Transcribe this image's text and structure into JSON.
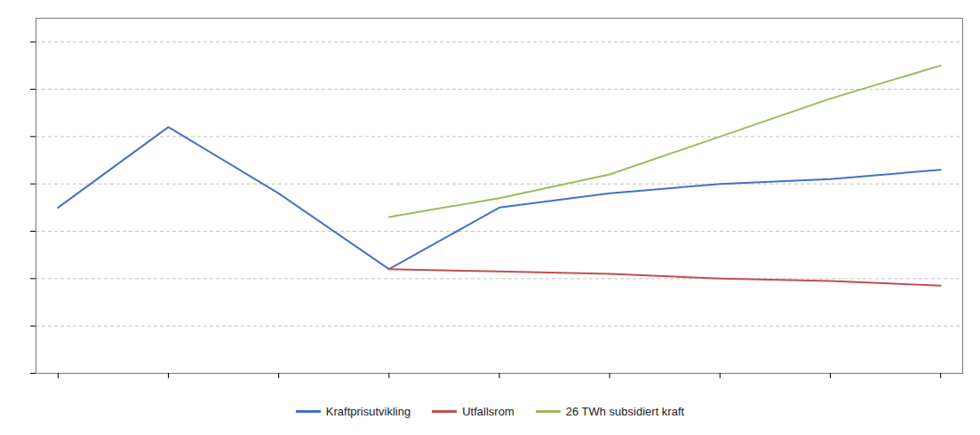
{
  "chart_data": {
    "type": "line",
    "series": [
      {
        "name": "Kraftprisutvikling",
        "color": "#4472C4",
        "x": [
          0,
          1,
          2,
          3,
          4,
          5,
          6,
          7,
          8
        ],
        "values": [
          3.5,
          5.2,
          3.8,
          2.2,
          3.5,
          3.8,
          4.0,
          4.1,
          4.3
        ]
      },
      {
        "name": "Utfallsrom",
        "color": "#C0504D",
        "x": [
          3,
          4,
          5,
          6,
          7,
          8
        ],
        "values": [
          2.2,
          2.15,
          2.1,
          2.0,
          1.95,
          1.85
        ]
      },
      {
        "name": "26 TWh subsidiert kraft",
        "color": "#9BBB59",
        "x": [
          3,
          4,
          5,
          6,
          7,
          8
        ],
        "values": [
          3.3,
          3.7,
          4.2,
          5.0,
          5.8,
          6.5
        ]
      }
    ],
    "xlim": [
      -0.2,
      8.2
    ],
    "ylim": [
      0,
      7.5
    ],
    "xticks": [
      0,
      1,
      2,
      3,
      4,
      5,
      6,
      7,
      8
    ],
    "yticks": [
      0,
      1.0,
      2.0,
      3.0,
      4.0,
      5.0,
      6.0,
      7.0
    ],
    "grid": true,
    "tick_labels": false,
    "legend": "bottom"
  }
}
